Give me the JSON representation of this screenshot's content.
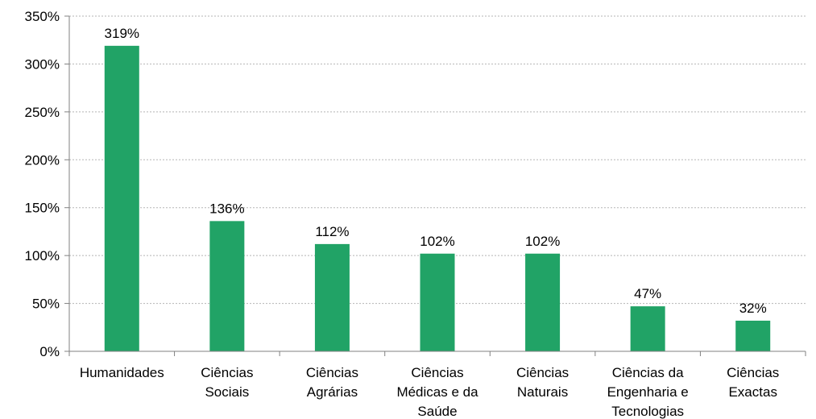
{
  "chart_data": {
    "type": "bar",
    "categories": [
      [
        "Humanidades"
      ],
      [
        "Ciências",
        "Sociais"
      ],
      [
        "Ciências",
        "Agrárias"
      ],
      [
        "Ciências",
        "Médicas e da",
        "Saúde"
      ],
      [
        "Ciências",
        "Naturais"
      ],
      [
        "Ciências da",
        "Engenharia e",
        "Tecnologias"
      ],
      [
        "Ciências",
        "Exactas"
      ]
    ],
    "values": [
      319,
      136,
      112,
      102,
      102,
      47,
      32
    ],
    "data_labels": [
      "319%",
      "136%",
      "112%",
      "102%",
      "102%",
      "47%",
      "32%"
    ],
    "ylim": [
      0,
      350
    ],
    "yticks": [
      0,
      50,
      100,
      150,
      200,
      250,
      300,
      350
    ],
    "ytick_labels": [
      "0%",
      "50%",
      "100%",
      "150%",
      "200%",
      "250%",
      "300%",
      "350%"
    ],
    "grid": true,
    "bar_color": "#21a366",
    "title": "",
    "xlabel": "",
    "ylabel": ""
  }
}
